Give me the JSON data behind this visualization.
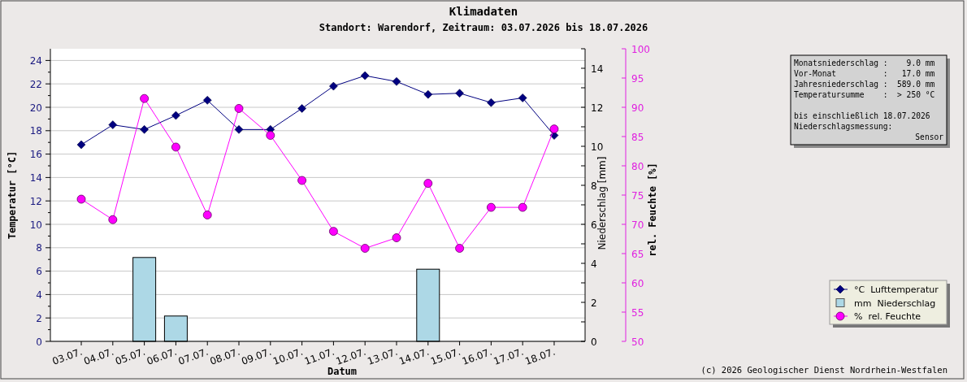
{
  "chart_data": {
    "type": "line",
    "title": "Klimadaten",
    "subtitle": "Standort: Warendorf, Zeitraum: 03.07.2026 bis 18.07.2026",
    "xlabel": "Datum",
    "ylabel": "Temperatur [°C]",
    "y2label": "Niederschlag [mm]",
    "y3label": "rel. Feuchte [%]",
    "categories": [
      "03.07.",
      "04.07.",
      "05.07.",
      "06.07.",
      "07.07.",
      "08.07.",
      "09.07.",
      "10.07.",
      "11.07.",
      "12.07.",
      "13.07.",
      "14.07.",
      "15.07.",
      "16.07.",
      "17.07.",
      "18.07."
    ],
    "series": [
      {
        "name": "°C  Lufttemperatur",
        "color": "#000080",
        "marker": "diamond",
        "axis": "y",
        "values": [
          16.8,
          18.5,
          18.1,
          19.3,
          20.6,
          18.1,
          18.1,
          19.9,
          21.8,
          22.7,
          22.2,
          21.1,
          21.2,
          20.4,
          20.8,
          17.6
        ]
      },
      {
        "name": "mm  Niederschlag",
        "type": "bar",
        "color": "#add8e6",
        "axis": "y2",
        "values": [
          0,
          0,
          4.3,
          1.3,
          0,
          0,
          0,
          0,
          0,
          0,
          0,
          3.7,
          0,
          0,
          0,
          0
        ]
      },
      {
        "name": "%  rel. Feuchte",
        "color": "#ff00ff",
        "marker": "circle",
        "axis": "y3",
        "values": [
          74.3,
          70.8,
          91.5,
          83.2,
          71.6,
          89.8,
          85.2,
          77.5,
          68.8,
          65.9,
          67.7,
          77.0,
          65.9,
          72.9,
          72.9,
          86.3
        ]
      }
    ],
    "ylim": [
      0,
      25
    ],
    "yticks": [
      0,
      {
        "value": 1,
        "label": null
      },
      2,
      {
        "value": 3,
        "label": null
      },
      4,
      {
        "value": 5,
        "label": null
      },
      6,
      {
        "value": 7,
        "label": null
      },
      8,
      {
        "value": 9,
        "label": null
      },
      10,
      {
        "value": 11,
        "label": null
      },
      12,
      {
        "value": 13,
        "label": null
      },
      14,
      {
        "value": 15,
        "label": null
      },
      16,
      {
        "value": 17,
        "label": null
      },
      18,
      {
        "value": 19,
        "label": null
      },
      20,
      {
        "value": 21,
        "label": null
      },
      22,
      {
        "value": 23,
        "label": null
      },
      24
    ],
    "y2lim": [
      0,
      15
    ],
    "y2ticks": [
      0,
      {
        "value": 1,
        "label": null
      },
      2,
      {
        "value": 3,
        "label": null
      },
      4,
      {
        "value": 5,
        "label": null
      },
      6,
      {
        "value": 7,
        "label": null
      },
      8,
      {
        "value": 9,
        "label": null
      },
      10,
      {
        "value": 11,
        "label": null
      },
      12,
      {
        "value": 13,
        "label": null
      },
      14,
      {
        "value": 15,
        "label": null
      }
    ],
    "y3lim": [
      50,
      100
    ],
    "y3ticks": [
      50,
      55,
      60,
      65,
      70,
      75,
      80,
      85,
      90,
      95,
      100
    ],
    "grid": "y",
    "legend": "right",
    "annotations": [
      "Monatsniederschlag :    9.0 mm",
      "Vor-Monat          :   17.0 mm",
      "Jahresniederschlag :  589.0 mm",
      "Temperatursumme    :  > 250 °C",
      "bis einschließlich 18.07.2026",
      "Niederschlagsmessung:",
      "Sensor",
      "(c) 2026 Geologischer Dienst Nordrhein-Westfalen"
    ]
  }
}
